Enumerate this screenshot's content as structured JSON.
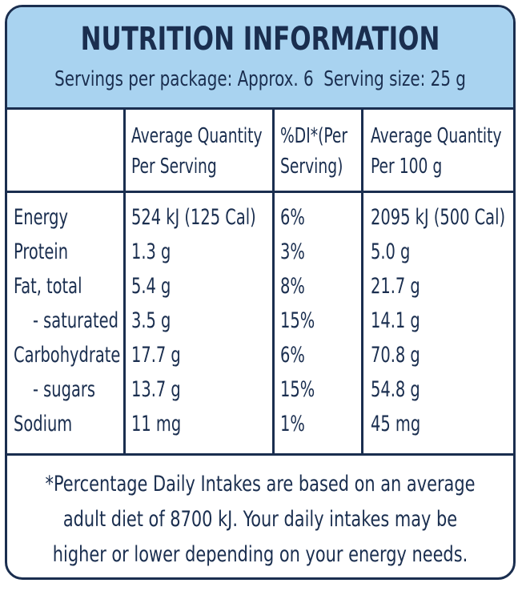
{
  "header": {
    "title": "NUTRITION INFORMATION",
    "servings": "Servings per package: Approx. 6  Serving size: 25 g"
  },
  "columns": {
    "per_serving": [
      "Average Quantity",
      "Per Serving"
    ],
    "di": [
      "%DI*(Per",
      "Serving)"
    ],
    "per_100g": [
      "Average Quantity",
      "Per 100 g"
    ]
  },
  "rows": [
    {
      "name": "Energy",
      "serving": "524 kJ (125 Cal)",
      "di": "6%",
      "per100": "2095 kJ (500 Cal)"
    },
    {
      "name": "Protein",
      "serving": "1.3 g",
      "di": "3%",
      "per100": "5.0 g"
    },
    {
      "name": "Fat, total",
      "serving": "5.4 g",
      "di": "8%",
      "per100": "21.7 g"
    },
    {
      "name": "- saturated",
      "serving": "3.5 g",
      "di": "15%",
      "per100": "14.1 g"
    },
    {
      "name": "Carbohydrate",
      "serving": "17.7 g",
      "di": "6%",
      "per100": "70.8 g"
    },
    {
      "name": "- sugars",
      "serving": "13.7 g",
      "di": "15%",
      "per100": "54.8 g"
    },
    {
      "name": "Sodium",
      "serving": "11 mg",
      "di": "1%",
      "per100": "45 mg"
    }
  ],
  "footer": [
    "*Percentage Daily Intakes are based on an average",
    "adult diet of 8700 kJ. Your daily intakes may be",
    "higher or lower depending on your energy needs."
  ],
  "colors": {
    "header_bg": "#a9d3f0",
    "ink": "#1a2e4f"
  }
}
